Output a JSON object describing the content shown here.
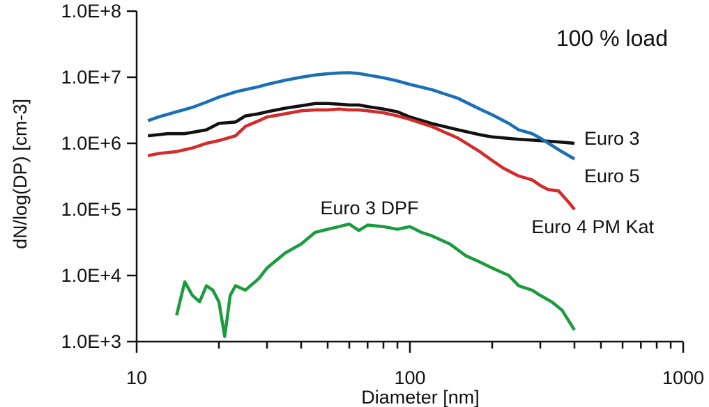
{
  "chart_data": {
    "type": "line",
    "title": "",
    "annotation": "100 % load",
    "xlabel": "Diameter [nm]",
    "ylabel": "dN/log(DP) [cm-3]",
    "x_scale": "log",
    "y_scale": "log",
    "xlim": [
      10,
      1000
    ],
    "ylim": [
      1000,
      100000000
    ],
    "x_ticks": [
      10,
      100,
      1000
    ],
    "x_tick_labels": [
      "10",
      "100",
      "1000"
    ],
    "y_ticks": [
      1000,
      10000,
      100000,
      1000000,
      10000000,
      100000000
    ],
    "y_tick_labels": [
      "1.0E+3",
      "1.0E+4",
      "1.0E+5",
      "1.0E+6",
      "1.0E+7",
      "1.0E+8"
    ],
    "grid": false,
    "series": [
      {
        "name": "Euro 3",
        "color": "#111111",
        "x": [
          11,
          13,
          15,
          18,
          20,
          23,
          25,
          28,
          30,
          35,
          40,
          45,
          50,
          55,
          60,
          65,
          70,
          80,
          90,
          100,
          120,
          150,
          180,
          200,
          250,
          300,
          350,
          400
        ],
        "y": [
          1300000,
          1400000,
          1400000,
          1600000,
          2000000,
          2100000,
          2600000,
          2800000,
          3000000,
          3400000,
          3700000,
          4000000,
          4000000,
          3900000,
          3800000,
          3800000,
          3600000,
          3300000,
          3000000,
          2500000,
          2000000,
          1600000,
          1350000,
          1250000,
          1150000,
          1100000,
          1050000,
          1000000
        ]
      },
      {
        "name": "Euro 5",
        "color": "#1b6fb5",
        "x": [
          11,
          12,
          14,
          16,
          18,
          20,
          23,
          25,
          28,
          30,
          35,
          40,
          45,
          50,
          55,
          60,
          65,
          70,
          80,
          90,
          100,
          120,
          150,
          180,
          200,
          230,
          250,
          280,
          300,
          350,
          400
        ],
        "y": [
          2200000,
          2500000,
          3000000,
          3500000,
          4200000,
          5000000,
          6000000,
          6500000,
          7200000,
          7800000,
          9000000,
          10000000,
          10800000,
          11300000,
          11600000,
          11700000,
          11400000,
          10800000,
          9800000,
          8800000,
          7800000,
          6500000,
          4800000,
          3300000,
          2700000,
          2000000,
          1600000,
          1400000,
          1200000,
          800000,
          580000
        ]
      },
      {
        "name": "Euro 4 PM Kat",
        "color": "#d42a2a",
        "x": [
          11,
          12,
          14,
          16,
          18,
          20,
          23,
          25,
          28,
          30,
          35,
          40,
          45,
          50,
          55,
          60,
          65,
          70,
          80,
          90,
          100,
          120,
          150,
          180,
          200,
          220,
          250,
          280,
          300,
          320,
          350,
          380,
          400
        ],
        "y": [
          650000,
          700000,
          750000,
          850000,
          1000000,
          1100000,
          1300000,
          1800000,
          2200000,
          2500000,
          2800000,
          3100000,
          3200000,
          3200000,
          3300000,
          3200000,
          3200000,
          3100000,
          2900000,
          2600000,
          2300000,
          1800000,
          1200000,
          750000,
          550000,
          420000,
          320000,
          280000,
          230000,
          200000,
          190000,
          130000,
          100000
        ]
      },
      {
        "name": "Euro 3 DPF",
        "color": "#1a9c3e",
        "x": [
          14,
          15,
          16,
          17,
          18,
          19,
          20,
          21,
          22,
          23,
          25,
          28,
          30,
          35,
          40,
          45,
          50,
          55,
          60,
          65,
          70,
          80,
          90,
          100,
          110,
          120,
          140,
          160,
          180,
          200,
          230,
          250,
          280,
          300,
          330,
          360,
          400
        ],
        "y": [
          2500,
          8000,
          5000,
          4000,
          7000,
          6000,
          4000,
          1200,
          5000,
          7000,
          6000,
          9000,
          13000,
          22000,
          30000,
          45000,
          50000,
          55000,
          60000,
          48000,
          58000,
          55000,
          50000,
          55000,
          45000,
          40000,
          30000,
          20000,
          16000,
          13000,
          10000,
          7000,
          6000,
          5000,
          4000,
          3000,
          1500
        ]
      }
    ]
  }
}
